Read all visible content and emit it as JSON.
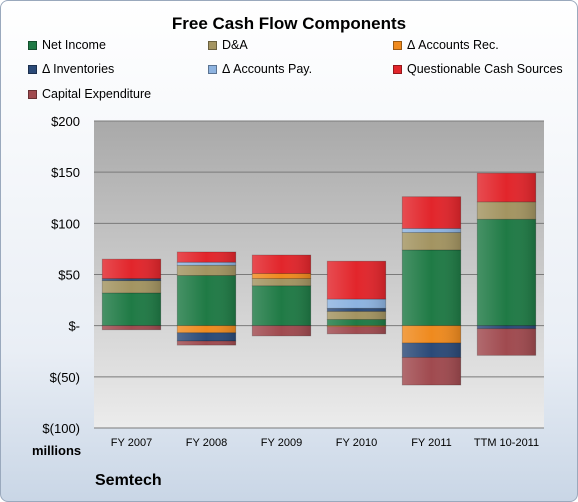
{
  "chart_data": {
    "type": "bar",
    "stacked": true,
    "title": "Free Cash Flow Components",
    "units_label": "millions",
    "company": "Semtech",
    "categories": [
      "FY 2007",
      "FY 2008",
      "FY 2009",
      "FY 2010",
      "FY 2011",
      "TTM 10-2011"
    ],
    "ylim": [
      -100,
      200
    ],
    "yticks": [
      200,
      150,
      100,
      50,
      0,
      -50,
      -100
    ],
    "ytick_labels": [
      "$200",
      "$150",
      "$100",
      "$50",
      "$-",
      "$(50)",
      "$(100)"
    ],
    "grid": true,
    "legend_position": "top",
    "series": [
      {
        "name": "Net Income",
        "color": "#1f7a45",
        "values": [
          32,
          49,
          39,
          6,
          74,
          104
        ]
      },
      {
        "name": "D&A",
        "color": "#a39461",
        "values": [
          12,
          10,
          7,
          8,
          17,
          17
        ]
      },
      {
        "name": "Δ Accounts Rec.",
        "color": "#ef8a1e",
        "values": [
          0,
          -7,
          5,
          -1,
          -17,
          0
        ]
      },
      {
        "name": "Δ Inventories",
        "color": "#2b4a78",
        "values": [
          2,
          -8,
          0,
          3,
          -14,
          -3
        ]
      },
      {
        "name": "Δ Accounts Pay.",
        "color": "#8db3e0",
        "values": [
          0,
          3,
          0,
          9,
          4,
          0
        ]
      },
      {
        "name": "Questionable Cash Sources",
        "color": "#e2252b",
        "values": [
          19,
          10,
          18,
          37,
          31,
          28
        ]
      },
      {
        "name": "Capital Expenditure",
        "color": "#a04a4f",
        "values": [
          -4,
          -4,
          -10,
          -7,
          -27,
          -26
        ]
      }
    ]
  }
}
